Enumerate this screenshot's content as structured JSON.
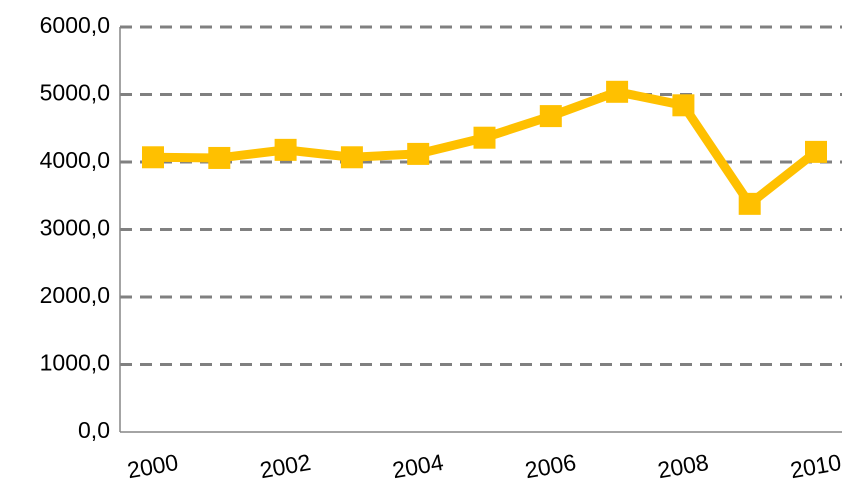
{
  "chart_data": {
    "type": "line",
    "categories": [
      "2000",
      null,
      "2002",
      null,
      "2004",
      null,
      "2006",
      null,
      "2008",
      null,
      "2010"
    ],
    "series": [
      {
        "color": "#ffc000",
        "values": [
          4070,
          4060,
          4180,
          4070,
          4120,
          4360,
          4680,
          5040,
          4840,
          3380,
          4150
        ]
      }
    ],
    "ylim": [
      0,
      6000
    ],
    "yticks": [
      {
        "value": 0,
        "label": "0,0"
      },
      {
        "value": 1000,
        "label": "1000,0"
      },
      {
        "value": 2000,
        "label": "2000,0"
      },
      {
        "value": 3000,
        "label": "3000,0"
      },
      {
        "value": 4000,
        "label": "4000,0"
      },
      {
        "value": 5000,
        "label": "5000,0"
      },
      {
        "value": 6000,
        "label": "6000,0"
      }
    ],
    "grid": true
  }
}
